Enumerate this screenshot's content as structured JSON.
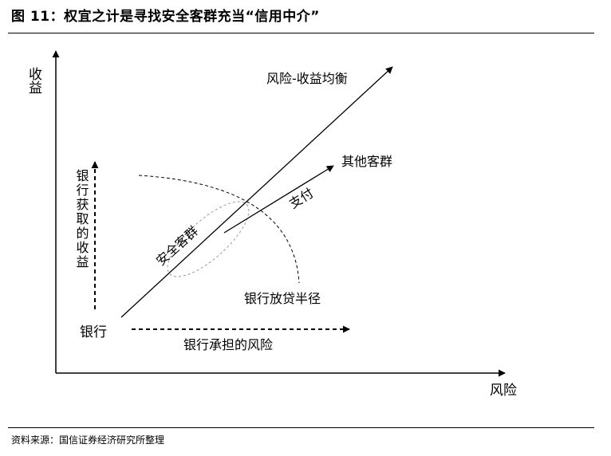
{
  "header": {
    "title": "图 11：权宜之计是寻找安全客群充当“信用中介”"
  },
  "footer": {
    "source": "资料来源：国信证券经济研究所整理"
  },
  "diagram": {
    "y_axis_label": "收益",
    "x_axis_label": "风险",
    "risk_return_line_label": "风险-收益均衡",
    "other_groups_label": "其他客群",
    "payment_label": "支付",
    "safe_group_label": "安全客群",
    "bank_lending_radius_label": "银行放贷半径",
    "bank_label": "银行",
    "bank_income_label": "银行获取的收益",
    "bank_risk_label": "银行承担的风险"
  }
}
